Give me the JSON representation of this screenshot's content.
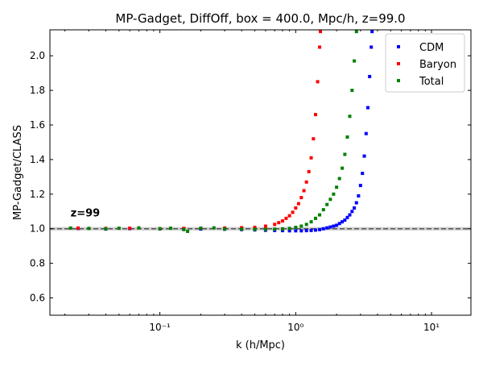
{
  "chart_data": {
    "type": "scatter",
    "title": "MP-Gadget, DiffOff, box = 400.0, Mpc/h, z=99.0",
    "xlabel": "k (h/Mpc)",
    "ylabel": "MP-Gadget/CLASS",
    "x_scale": "log",
    "xlim": [
      0.0155,
      19.5
    ],
    "ylim": [
      0.5,
      2.15
    ],
    "x_ticks": [
      {
        "value": 0.1,
        "label": "10⁻¹"
      },
      {
        "value": 1,
        "label": "10⁰"
      },
      {
        "value": 10,
        "label": "10¹"
      }
    ],
    "y_ticks": [
      {
        "value": 0.6,
        "label": "0.6"
      },
      {
        "value": 0.8,
        "label": "0.8"
      },
      {
        "value": 1.0,
        "label": "1.0"
      },
      {
        "value": 1.2,
        "label": "1.2"
      },
      {
        "value": 1.4,
        "label": "1.4"
      },
      {
        "value": 1.6,
        "label": "1.6"
      },
      {
        "value": 1.8,
        "label": "1.8"
      },
      {
        "value": 2.0,
        "label": "2.0"
      }
    ],
    "reference_line": {
      "y": 1.0,
      "style": "dashed",
      "band": [
        0.99,
        1.01
      ],
      "color": "#555555"
    },
    "annotation": {
      "text": "z=99",
      "x": 0.022,
      "y": 1.09
    },
    "legend": {
      "position": "top-right"
    },
    "series": [
      {
        "name": "CDM",
        "color": "#0000ff",
        "points": [
          [
            0.025,
            1.002
          ],
          [
            0.04,
            0.998
          ],
          [
            0.06,
            1.001
          ],
          [
            0.1,
            0.999
          ],
          [
            0.15,
            1.0
          ],
          [
            0.2,
            0.998
          ],
          [
            0.3,
            0.997
          ],
          [
            0.4,
            0.995
          ],
          [
            0.5,
            0.993
          ],
          [
            0.6,
            0.991
          ],
          [
            0.7,
            0.99
          ],
          [
            0.8,
            0.989
          ],
          [
            0.9,
            0.988
          ],
          [
            1.0,
            0.988
          ],
          [
            1.1,
            0.988
          ],
          [
            1.2,
            0.989
          ],
          [
            1.3,
            0.99
          ],
          [
            1.4,
            0.992
          ],
          [
            1.5,
            0.995
          ],
          [
            1.6,
            1.0
          ],
          [
            1.7,
            1.005
          ],
          [
            1.8,
            1.01
          ],
          [
            1.9,
            1.015
          ],
          [
            2.0,
            1.02
          ],
          [
            2.1,
            1.03
          ],
          [
            2.2,
            1.04
          ],
          [
            2.3,
            1.05
          ],
          [
            2.4,
            1.065
          ],
          [
            2.5,
            1.08
          ],
          [
            2.6,
            1.1
          ],
          [
            2.7,
            1.12
          ],
          [
            2.8,
            1.15
          ],
          [
            2.9,
            1.19
          ],
          [
            3.0,
            1.25
          ],
          [
            3.1,
            1.32
          ],
          [
            3.2,
            1.42
          ],
          [
            3.3,
            1.55
          ],
          [
            3.4,
            1.7
          ],
          [
            3.5,
            1.88
          ],
          [
            3.6,
            2.05
          ],
          [
            3.65,
            2.14
          ]
        ]
      },
      {
        "name": "Baryon",
        "color": "#ff0000",
        "points": [
          [
            0.025,
            1.004
          ],
          [
            0.04,
            1.002
          ],
          [
            0.06,
            1.003
          ],
          [
            0.1,
            1.0
          ],
          [
            0.15,
            1.002
          ],
          [
            0.2,
            1.003
          ],
          [
            0.3,
            1.004
          ],
          [
            0.4,
            1.006
          ],
          [
            0.5,
            1.008
          ],
          [
            0.6,
            1.015
          ],
          [
            0.7,
            1.025
          ],
          [
            0.75,
            1.035
          ],
          [
            0.8,
            1.045
          ],
          [
            0.85,
            1.06
          ],
          [
            0.9,
            1.075
          ],
          [
            0.95,
            1.095
          ],
          [
            1.0,
            1.12
          ],
          [
            1.05,
            1.145
          ],
          [
            1.1,
            1.18
          ],
          [
            1.15,
            1.22
          ],
          [
            1.2,
            1.27
          ],
          [
            1.25,
            1.33
          ],
          [
            1.3,
            1.41
          ],
          [
            1.35,
            1.52
          ],
          [
            1.4,
            1.66
          ],
          [
            1.45,
            1.85
          ],
          [
            1.5,
            2.05
          ],
          [
            1.52,
            2.14
          ]
        ]
      },
      {
        "name": "Total",
        "color": "#008000",
        "points": [
          [
            0.022,
            1.004
          ],
          [
            0.03,
            1.002
          ],
          [
            0.04,
            1.0
          ],
          [
            0.05,
            1.003
          ],
          [
            0.07,
            1.005
          ],
          [
            0.1,
            1.0
          ],
          [
            0.12,
            1.003
          ],
          [
            0.15,
            0.995
          ],
          [
            0.16,
            0.985
          ],
          [
            0.2,
            1.003
          ],
          [
            0.25,
            1.005
          ],
          [
            0.3,
            0.998
          ],
          [
            0.4,
            0.997
          ],
          [
            0.5,
            0.996
          ],
          [
            0.6,
            0.996
          ],
          [
            0.7,
            0.997
          ],
          [
            0.8,
            0.999
          ],
          [
            0.9,
            1.002
          ],
          [
            1.0,
            1.008
          ],
          [
            1.1,
            1.015
          ],
          [
            1.2,
            1.025
          ],
          [
            1.3,
            1.04
          ],
          [
            1.4,
            1.06
          ],
          [
            1.5,
            1.08
          ],
          [
            1.6,
            1.11
          ],
          [
            1.7,
            1.14
          ],
          [
            1.8,
            1.17
          ],
          [
            1.9,
            1.2
          ],
          [
            2.0,
            1.24
          ],
          [
            2.1,
            1.29
          ],
          [
            2.2,
            1.35
          ],
          [
            2.3,
            1.43
          ],
          [
            2.4,
            1.53
          ],
          [
            2.5,
            1.65
          ],
          [
            2.6,
            1.8
          ],
          [
            2.7,
            1.97
          ],
          [
            2.8,
            2.14
          ]
        ]
      }
    ]
  }
}
